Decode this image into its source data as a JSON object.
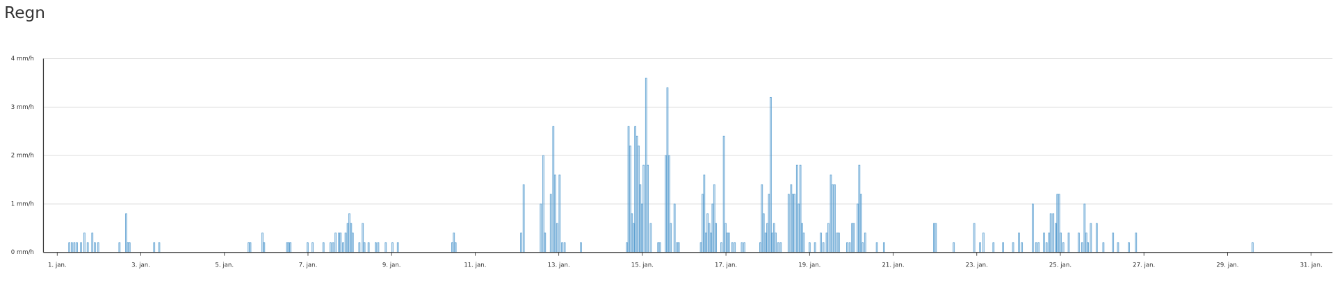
{
  "chart_data": {
    "type": "bar",
    "title": "Regn",
    "color": "#5b9fd0",
    "grid": true,
    "x": [
      1.29,
      1.35,
      1.41,
      1.47,
      1.57,
      1.65,
      1.73,
      1.84,
      1.9,
      1.98,
      2.49,
      2.65,
      2.69,
      2.73,
      3.32,
      3.44,
      5.58,
      5.62,
      5.91,
      5.95,
      6.5,
      6.54,
      6.58,
      6.99,
      7.11,
      7.37,
      7.54,
      7.6,
      7.66,
      7.74,
      7.78,
      7.84,
      7.9,
      7.95,
      7.99,
      8.03,
      8.07,
      8.23,
      8.31,
      8.35,
      8.45,
      8.62,
      8.68,
      8.86,
      9.02,
      9.15,
      10.45,
      10.49,
      10.53,
      12.1,
      12.16,
      12.57,
      12.63,
      12.67,
      12.81,
      12.87,
      12.91,
      12.96,
      13.02,
      13.08,
      13.14,
      13.53,
      14.63,
      14.67,
      14.71,
      14.75,
      14.79,
      14.83,
      14.87,
      14.91,
      14.95,
      14.99,
      15.03,
      15.09,
      15.13,
      15.2,
      15.38,
      15.42,
      15.56,
      15.6,
      15.64,
      15.68,
      15.77,
      15.83,
      15.87,
      16.4,
      16.44,
      16.48,
      16.52,
      16.56,
      16.6,
      16.64,
      16.68,
      16.72,
      16.76,
      16.89,
      16.95,
      16.99,
      17.03,
      17.07,
      17.15,
      17.21,
      17.38,
      17.44,
      17.82,
      17.86,
      17.9,
      17.95,
      17.99,
      18.03,
      18.07,
      18.11,
      18.15,
      18.19,
      18.25,
      18.31,
      18.5,
      18.56,
      18.6,
      18.64,
      18.7,
      18.74,
      18.78,
      18.82,
      18.86,
      19.0,
      19.13,
      19.27,
      19.33,
      19.41,
      19.45,
      19.51,
      19.55,
      19.6,
      19.66,
      19.7,
      19.9,
      19.96,
      20.02,
      20.06,
      20.15,
      20.19,
      20.23,
      20.27,
      20.33,
      20.61,
      20.78,
      21.98,
      22.02,
      22.45,
      22.94,
      23.08,
      23.16,
      23.4,
      23.63,
      23.87,
      24.01,
      24.08,
      24.34,
      24.42,
      24.48,
      24.61,
      24.67,
      24.73,
      24.77,
      24.83,
      24.89,
      24.93,
      24.97,
      25.01,
      25.07,
      25.2,
      25.44,
      25.52,
      25.58,
      25.62,
      25.66,
      25.73,
      25.87,
      26.03,
      26.26,
      26.38,
      26.64,
      26.81,
      29.6
    ],
    "values": [
      0.2,
      0.2,
      0.2,
      0.2,
      0.2,
      0.4,
      0.2,
      0.4,
      0.2,
      0.2,
      0.2,
      0.8,
      0.2,
      0.2,
      0.2,
      0.2,
      0.2,
      0.2,
      0.4,
      0.2,
      0.2,
      0.2,
      0.2,
      0.2,
      0.2,
      0.2,
      0.2,
      0.2,
      0.4,
      0.4,
      0.4,
      0.2,
      0.4,
      0.6,
      0.8,
      0.6,
      0.4,
      0.2,
      0.6,
      0.2,
      0.2,
      0.2,
      0.2,
      0.2,
      0.2,
      0.2,
      0.2,
      0.4,
      0.2,
      0.4,
      1.4,
      1.0,
      2.0,
      0.4,
      1.2,
      2.6,
      1.6,
      0.6,
      1.6,
      0.2,
      0.2,
      0.2,
      0.2,
      2.6,
      2.2,
      0.8,
      0.6,
      2.6,
      2.4,
      2.2,
      1.4,
      1.0,
      1.8,
      3.6,
      1.8,
      0.6,
      0.2,
      0.2,
      2.0,
      3.4,
      2.0,
      0.6,
      1.0,
      0.2,
      0.2,
      0.2,
      1.2,
      1.6,
      0.4,
      0.8,
      0.6,
      0.4,
      1.0,
      1.4,
      0.6,
      0.2,
      2.4,
      0.6,
      0.4,
      0.4,
      0.2,
      0.2,
      0.2,
      0.2,
      0.2,
      1.4,
      0.8,
      0.4,
      0.6,
      1.2,
      3.2,
      0.4,
      0.6,
      0.4,
      0.2,
      0.2,
      1.2,
      1.4,
      1.2,
      1.2,
      1.8,
      1.0,
      1.8,
      0.6,
      0.4,
      0.2,
      0.2,
      0.4,
      0.2,
      0.4,
      0.6,
      1.6,
      1.4,
      1.4,
      0.4,
      0.4,
      0.2,
      0.2,
      0.6,
      0.6,
      1.0,
      1.8,
      1.2,
      0.2,
      0.4,
      0.2,
      0.2,
      0.6,
      0.6,
      0.2,
      0.6,
      0.2,
      0.4,
      0.2,
      0.2,
      0.2,
      0.4,
      0.2,
      1.0,
      0.2,
      0.2,
      0.4,
      0.2,
      0.4,
      0.8,
      0.8,
      0.6,
      1.2,
      1.2,
      0.4,
      0.2,
      0.4,
      0.4,
      0.2,
      1.0,
      0.4,
      0.2,
      0.6,
      0.6,
      0.2,
      0.4,
      0.2,
      0.2,
      0.4,
      0.2
    ],
    "xlim": [
      0.67,
      31.51
    ],
    "ylim": [
      0,
      4
    ],
    "xticks": [
      {
        "value": 1,
        "label": "1. jan."
      },
      {
        "value": 3,
        "label": "3. jan."
      },
      {
        "value": 5,
        "label": "5. jan."
      },
      {
        "value": 7,
        "label": "7. jan."
      },
      {
        "value": 9,
        "label": "9. jan."
      },
      {
        "value": 11,
        "label": "11. jan."
      },
      {
        "value": 13,
        "label": "13. jan."
      },
      {
        "value": 15,
        "label": "15. jan."
      },
      {
        "value": 17,
        "label": "17. jan."
      },
      {
        "value": 19,
        "label": "19. jan."
      },
      {
        "value": 21,
        "label": "21. jan."
      },
      {
        "value": 23,
        "label": "23. jan."
      },
      {
        "value": 25,
        "label": "25. jan."
      },
      {
        "value": 27,
        "label": "27. jan."
      },
      {
        "value": 29,
        "label": "29. jan."
      },
      {
        "value": 31,
        "label": "31. jan."
      }
    ],
    "yticks": [
      {
        "value": 0,
        "label": "0 mm/h"
      },
      {
        "value": 1,
        "label": "1 mm/h"
      },
      {
        "value": 2,
        "label": "2 mm/h"
      },
      {
        "value": 3,
        "label": "3 mm/h"
      },
      {
        "value": 4,
        "label": "4 mm/h"
      }
    ]
  }
}
